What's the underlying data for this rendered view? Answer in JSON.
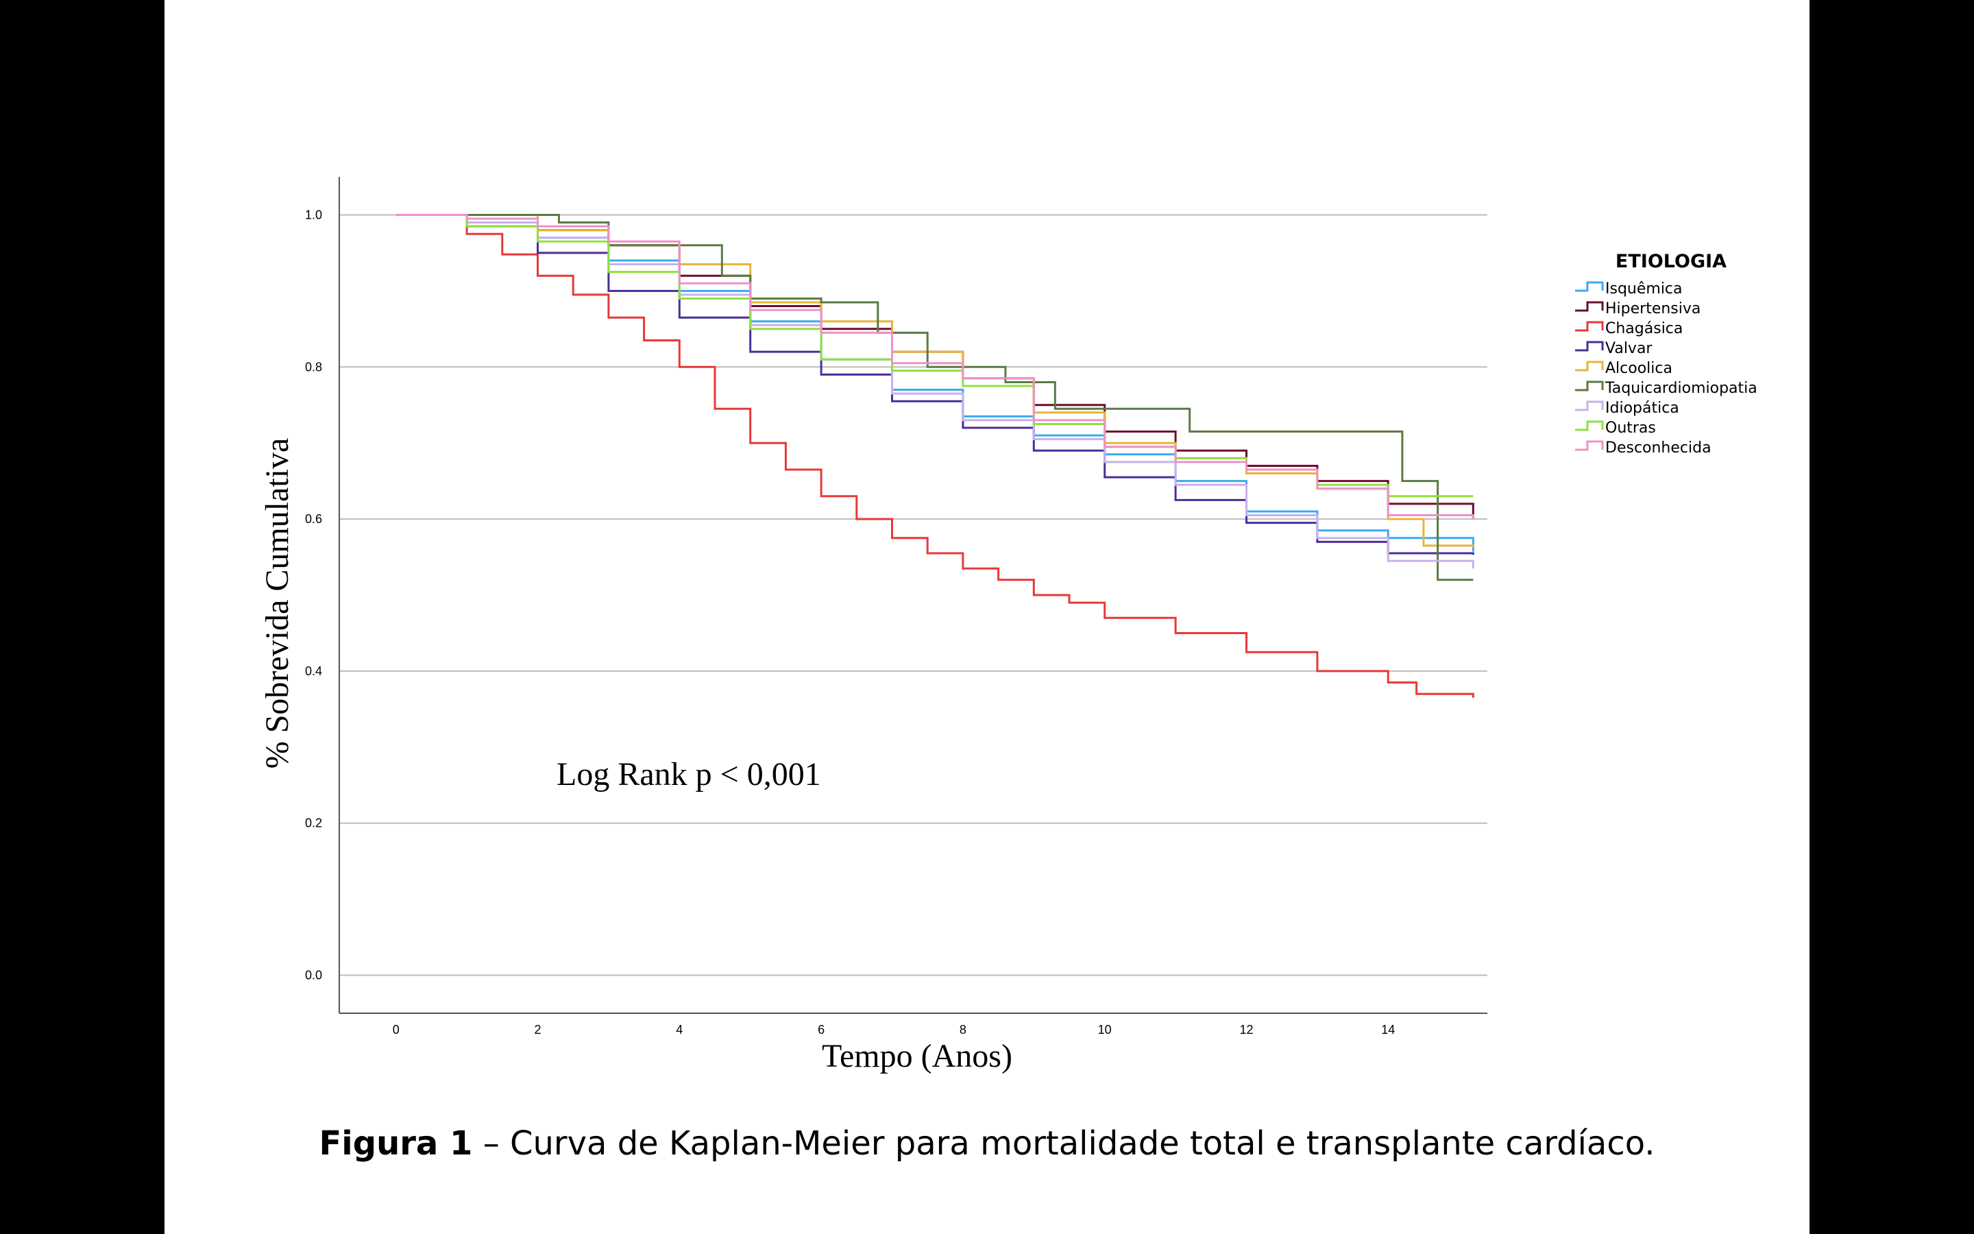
{
  "caption": {
    "label": "Figura 1",
    "text": " – Curva de Kaplan-Meier para mortalidade total e transplante cardíaco."
  },
  "chart_data": {
    "type": "line",
    "step": true,
    "title": "",
    "xlabel": "Tempo (Anos)",
    "ylabel": "% Sobrevida Cumulativa",
    "xlim": [
      -0.8,
      15.4
    ],
    "ylim": [
      -0.05,
      1.05
    ],
    "x_ticks": [
      "0",
      "2",
      "4",
      "6",
      "8",
      "10",
      "12",
      "14"
    ],
    "y_ticks": [
      "0.0",
      "0.2",
      "0.4",
      "0.6",
      "0.8",
      "1.0"
    ],
    "grid": "horizontal",
    "annotation": "Log Rank p < 0,001",
    "legend": {
      "title": "ETIOLOGIA",
      "position": "right"
    },
    "series": [
      {
        "name": "Isquêmica",
        "color": "#3aaaf0",
        "x": [
          0,
          0.6,
          1,
          2,
          3,
          4,
          5,
          6,
          7,
          8,
          9,
          10,
          11,
          12,
          13,
          14,
          15.2
        ],
        "y": [
          1.0,
          1.0,
          0.99,
          0.97,
          0.94,
          0.9,
          0.86,
          0.81,
          0.77,
          0.735,
          0.71,
          0.685,
          0.65,
          0.61,
          0.585,
          0.575,
          0.557
        ]
      },
      {
        "name": "Hipertensiva",
        "color": "#6b0f2e",
        "x": [
          0,
          1,
          2,
          3,
          4,
          5,
          6,
          7,
          8,
          9,
          10,
          11,
          12,
          13,
          14,
          15.2
        ],
        "y": [
          1.0,
          1.0,
          0.98,
          0.96,
          0.92,
          0.88,
          0.85,
          0.82,
          0.785,
          0.75,
          0.715,
          0.69,
          0.67,
          0.65,
          0.62,
          0.6
        ]
      },
      {
        "name": "Chagásica",
        "color": "#e8383a",
        "x": [
          0,
          0.5,
          1,
          1.5,
          2,
          2.5,
          3,
          3.5,
          4,
          4.5,
          5,
          5.5,
          6,
          6.5,
          7,
          7.5,
          8,
          8.5,
          9,
          9.5,
          10,
          11,
          12,
          13,
          14,
          14.4,
          15.2
        ],
        "y": [
          1.0,
          1.0,
          0.975,
          0.948,
          0.92,
          0.895,
          0.865,
          0.835,
          0.8,
          0.745,
          0.7,
          0.665,
          0.63,
          0.6,
          0.575,
          0.555,
          0.535,
          0.52,
          0.5,
          0.49,
          0.47,
          0.45,
          0.425,
          0.4,
          0.385,
          0.37,
          0.365
        ]
      },
      {
        "name": "Valvar",
        "color": "#4a2f9a",
        "x": [
          0,
          0.6,
          1,
          2,
          3,
          4,
          5,
          6,
          7,
          8,
          9,
          10,
          11,
          12,
          13,
          14,
          15.2
        ],
        "y": [
          1.0,
          1.0,
          0.985,
          0.95,
          0.9,
          0.865,
          0.82,
          0.79,
          0.755,
          0.72,
          0.69,
          0.655,
          0.625,
          0.595,
          0.57,
          0.555,
          0.553
        ]
      },
      {
        "name": "Alcoolica",
        "color": "#e8b33a",
        "x": [
          0,
          1,
          2,
          3,
          4,
          5,
          6,
          7,
          8,
          9,
          10,
          11,
          12,
          13,
          14,
          14.5,
          15.2
        ],
        "y": [
          1.0,
          1.0,
          0.98,
          0.96,
          0.935,
          0.885,
          0.86,
          0.82,
          0.785,
          0.74,
          0.7,
          0.68,
          0.66,
          0.64,
          0.6,
          0.565,
          0.563
        ]
      },
      {
        "name": "Taquicardiomiopatia",
        "color": "#5c7a45",
        "x": [
          0,
          1,
          2,
          2.3,
          3,
          4,
          4.6,
          5,
          6,
          6.8,
          7.5,
          8.6,
          9.3,
          11.2,
          14.2,
          14.7,
          15.2
        ],
        "y": [
          1.0,
          1.0,
          1.0,
          0.99,
          0.96,
          0.96,
          0.92,
          0.89,
          0.885,
          0.845,
          0.8,
          0.78,
          0.745,
          0.715,
          0.65,
          0.52,
          0.52
        ]
      },
      {
        "name": "Idiopática",
        "color": "#c8b0ee",
        "x": [
          0,
          1,
          2,
          3,
          4,
          5,
          6,
          7,
          8,
          9,
          10,
          11,
          12,
          13,
          14,
          15.2
        ],
        "y": [
          1.0,
          0.99,
          0.97,
          0.935,
          0.895,
          0.855,
          0.81,
          0.765,
          0.73,
          0.705,
          0.675,
          0.645,
          0.605,
          0.575,
          0.545,
          0.535
        ]
      },
      {
        "name": "Outras",
        "color": "#8fe040",
        "x": [
          0,
          1,
          2,
          3,
          4,
          5,
          6,
          7,
          8,
          9,
          10,
          11,
          12,
          13,
          14,
          15.2
        ],
        "y": [
          1.0,
          0.985,
          0.965,
          0.925,
          0.89,
          0.85,
          0.81,
          0.795,
          0.775,
          0.725,
          0.695,
          0.68,
          0.665,
          0.645,
          0.63,
          0.63
        ]
      },
      {
        "name": "Desconhecida",
        "color": "#f090c8",
        "x": [
          0,
          1,
          2,
          3,
          4,
          5,
          6,
          7,
          8,
          9,
          10,
          11,
          12,
          13,
          14,
          15.2
        ],
        "y": [
          1.0,
          0.995,
          0.985,
          0.965,
          0.91,
          0.875,
          0.845,
          0.805,
          0.785,
          0.73,
          0.695,
          0.675,
          0.665,
          0.64,
          0.605,
          0.6
        ]
      }
    ]
  }
}
